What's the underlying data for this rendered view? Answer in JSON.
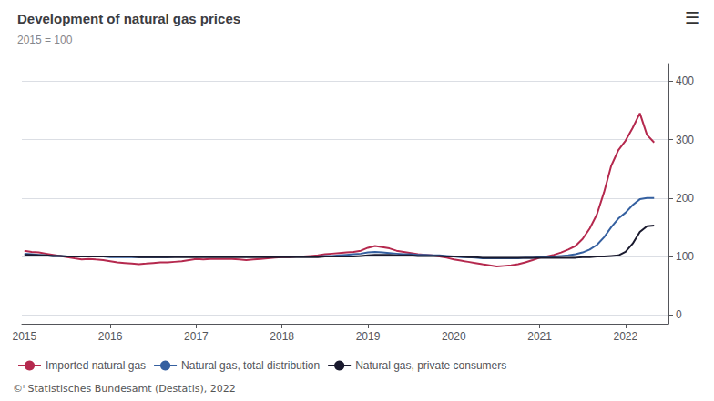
{
  "chart_data": {
    "type": "line",
    "title": "Development of natural gas prices",
    "subtitle": "2015 = 100",
    "annotations": [
      "©ᴵ Statistisches Bundesamt (Destatis), 2022",
      "☰"
    ],
    "x": [
      2015.0,
      2015.083,
      2015.167,
      2015.25,
      2015.333,
      2015.417,
      2015.5,
      2015.583,
      2015.667,
      2015.75,
      2015.833,
      2015.917,
      2016.0,
      2016.083,
      2016.167,
      2016.25,
      2016.333,
      2016.417,
      2016.5,
      2016.583,
      2016.667,
      2016.75,
      2016.833,
      2016.917,
      2017.0,
      2017.083,
      2017.167,
      2017.25,
      2017.333,
      2017.417,
      2017.5,
      2017.583,
      2017.667,
      2017.75,
      2017.833,
      2017.917,
      2018.0,
      2018.083,
      2018.167,
      2018.25,
      2018.333,
      2018.417,
      2018.5,
      2018.583,
      2018.667,
      2018.75,
      2018.833,
      2018.917,
      2019.0,
      2019.083,
      2019.167,
      2019.25,
      2019.333,
      2019.417,
      2019.5,
      2019.583,
      2019.667,
      2019.75,
      2019.833,
      2019.917,
      2020.0,
      2020.083,
      2020.167,
      2020.25,
      2020.333,
      2020.417,
      2020.5,
      2020.583,
      2020.667,
      2020.75,
      2020.833,
      2020.917,
      2021.0,
      2021.083,
      2021.167,
      2021.25,
      2021.333,
      2021.417,
      2021.5,
      2021.583,
      2021.667,
      2021.75,
      2021.833,
      2021.917,
      2022.0,
      2022.083,
      2022.167,
      2022.25,
      2022.333
    ],
    "series": [
      {
        "name": "Imported natural gas",
        "color": "#b5294e",
        "values": [
          110,
          108,
          107,
          105,
          103,
          101,
          99,
          97,
          95,
          96,
          95,
          94,
          92,
          90,
          89,
          88,
          87,
          88,
          89,
          90,
          90,
          91,
          92,
          94,
          96,
          95,
          96,
          96,
          96,
          96,
          95,
          94,
          95,
          96,
          97,
          98,
          99,
          99,
          100,
          100,
          101,
          102,
          104,
          105,
          106,
          107,
          108,
          110,
          115,
          118,
          116,
          114,
          110,
          108,
          106,
          104,
          103,
          102,
          100,
          98,
          95,
          93,
          91,
          89,
          87,
          85,
          83,
          84,
          85,
          87,
          90,
          94,
          98,
          100,
          103,
          107,
          112,
          118,
          130,
          148,
          172,
          210,
          255,
          282,
          298,
          320,
          345,
          308,
          295
        ]
      },
      {
        "name": "Natural gas, total distribution",
        "color": "#3560a0",
        "values": [
          105,
          104,
          103,
          102,
          101,
          101,
          100,
          100,
          100,
          100,
          100,
          100,
          99,
          99,
          99,
          99,
          99,
          99,
          99,
          99,
          99,
          100,
          100,
          100,
          100,
          100,
          100,
          100,
          100,
          100,
          100,
          100,
          100,
          100,
          100,
          100,
          100,
          100,
          100,
          100,
          100,
          100,
          101,
          101,
          102,
          103,
          104,
          105,
          107,
          108,
          107,
          106,
          105,
          104,
          104,
          103,
          103,
          102,
          102,
          101,
          100,
          99,
          99,
          98,
          97,
          97,
          97,
          97,
          97,
          97,
          98,
          98,
          99,
          99,
          100,
          101,
          102,
          104,
          107,
          112,
          120,
          133,
          150,
          165,
          175,
          188,
          198,
          200,
          200
        ]
      },
      {
        "name": "Natural gas, private consumers",
        "color": "#1a1a2e",
        "values": [
          103,
          103,
          102,
          102,
          101,
          101,
          100,
          100,
          100,
          100,
          100,
          100,
          100,
          100,
          100,
          100,
          99,
          99,
          99,
          99,
          99,
          99,
          99,
          99,
          99,
          99,
          99,
          99,
          99,
          99,
          99,
          99,
          99,
          99,
          99,
          99,
          99,
          99,
          99,
          99,
          99,
          99,
          100,
          100,
          100,
          100,
          100,
          101,
          102,
          103,
          103,
          103,
          102,
          102,
          102,
          101,
          101,
          101,
          101,
          100,
          100,
          100,
          99,
          99,
          98,
          98,
          98,
          98,
          98,
          98,
          98,
          98,
          98,
          98,
          98,
          98,
          98,
          98,
          99,
          99,
          100,
          100,
          101,
          102,
          108,
          122,
          142,
          152,
          153
        ]
      }
    ],
    "xlim": [
      2014.97,
      2022.5
    ],
    "xticks": [
      2015,
      2016,
      2017,
      2018,
      2019,
      2020,
      2021,
      2022
    ],
    "ylim": [
      -15,
      430
    ],
    "yticks": [
      0,
      100,
      200,
      300,
      400
    ],
    "grid": true,
    "legend": "bottom"
  }
}
